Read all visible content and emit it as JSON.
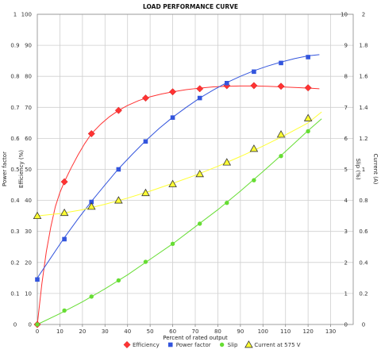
{
  "chart_data": {
    "type": "line",
    "title": "LOAD PERFORMANCE CURVE",
    "xlabel": "Percent of rated output",
    "xlim": [
      0,
      140
    ],
    "xticks": [
      0,
      10,
      20,
      30,
      40,
      50,
      60,
      70,
      80,
      90,
      100,
      110,
      120,
      130
    ],
    "grid": true,
    "legend_position": "bottom",
    "axes": {
      "power_factor": {
        "label": "Power factor",
        "side": "left-outer",
        "range": [
          0,
          1
        ],
        "ticks": [
          "0",
          "0.1",
          "0.2",
          "0.3",
          "0.4",
          "0.5",
          "0.6",
          "0.7",
          "0.8",
          "0.9",
          "1"
        ]
      },
      "efficiency": {
        "label": "Efficiency (%)",
        "side": "left-inner",
        "range": [
          0,
          100
        ],
        "ticks": [
          "0",
          "10",
          "20",
          "30",
          "40",
          "50",
          "60",
          "70",
          "80",
          "90",
          "100"
        ]
      },
      "slip": {
        "label": "Slip (%)",
        "side": "right-inner",
        "range": [
          0,
          10
        ],
        "ticks": [
          "0",
          "1",
          "2",
          "3",
          "4",
          "5",
          "6",
          "7",
          "8",
          "9",
          "10"
        ]
      },
      "current": {
        "label": "Current (A)",
        "side": "right-outer",
        "range": [
          0,
          2
        ],
        "ticks": [
          "0",
          "0.2",
          "0.4",
          "0.6",
          "0.8",
          "1",
          "1.2",
          "1.4",
          "1.6",
          "1.8",
          "2"
        ]
      }
    },
    "series": [
      {
        "name": "Efficiency",
        "axis": "efficiency",
        "color": "#ff3333",
        "marker": "diamond",
        "x": [
          0,
          12,
          24,
          36,
          48,
          60,
          72,
          84,
          96,
          108,
          120
        ],
        "y": [
          0,
          46,
          61.5,
          69,
          73,
          75,
          76,
          77,
          77,
          76.8,
          76.3
        ],
        "curve_x": [
          0,
          2,
          4,
          6,
          8,
          10,
          12,
          15,
          18,
          21,
          24,
          28,
          32,
          36,
          40,
          45,
          50,
          55,
          60,
          66,
          72,
          78,
          84,
          90,
          96,
          102,
          108,
          114,
          120,
          125
        ],
        "curve_y": [
          0,
          13,
          23.5,
          31.5,
          38,
          42.5,
          46,
          50.5,
          54.6,
          58.3,
          61.5,
          64.5,
          67,
          69,
          70.6,
          72.2,
          73.4,
          74.3,
          75,
          75.7,
          76.2,
          76.6,
          76.8,
          76.9,
          76.9,
          76.8,
          76.6,
          76.4,
          76.2,
          76
        ]
      },
      {
        "name": "Power factor",
        "axis": "power_factor",
        "color": "#3355dd",
        "marker": "square",
        "x": [
          0,
          12,
          24,
          36,
          48,
          60,
          72,
          84,
          96,
          108,
          120
        ],
        "y": [
          0.145,
          0.275,
          0.395,
          0.5,
          0.59,
          0.667,
          0.73,
          0.778,
          0.815,
          0.843,
          0.862
        ],
        "curve_x": [
          0,
          6,
          12,
          18,
          24,
          30,
          36,
          42,
          48,
          54,
          60,
          66,
          72,
          78,
          84,
          90,
          96,
          102,
          108,
          114,
          120,
          125
        ],
        "curve_y": [
          0.15,
          0.215,
          0.28,
          0.34,
          0.397,
          0.45,
          0.502,
          0.548,
          0.592,
          0.632,
          0.668,
          0.7,
          0.73,
          0.756,
          0.78,
          0.8,
          0.818,
          0.833,
          0.846,
          0.857,
          0.866,
          0.87
        ]
      },
      {
        "name": "Slip",
        "axis": "slip",
        "color": "#66dd33",
        "marker": "circle",
        "x": [
          0,
          12,
          24,
          36,
          48,
          60,
          72,
          84,
          96,
          108,
          120
        ],
        "y": [
          0,
          0.45,
          0.9,
          1.42,
          2.02,
          2.6,
          3.25,
          3.92,
          4.65,
          5.43,
          6.23
        ],
        "curve_x": [
          0,
          10,
          20,
          30,
          40,
          50,
          60,
          70,
          80,
          90,
          100,
          110,
          120,
          126
        ],
        "curve_y": [
          0,
          0.35,
          0.73,
          1.15,
          1.6,
          2.1,
          2.6,
          3.15,
          3.7,
          4.3,
          4.93,
          5.58,
          6.25,
          6.63
        ]
      },
      {
        "name": "Current at 575 V",
        "axis": "current",
        "color": "#ffff33",
        "marker": "triangle",
        "x": [
          0,
          12,
          24,
          36,
          48,
          60,
          72,
          84,
          96,
          108,
          120
        ],
        "y": [
          0.7,
          0.72,
          0.76,
          0.8,
          0.848,
          0.905,
          0.97,
          1.045,
          1.133,
          1.225,
          1.33
        ],
        "curve_x": [
          0,
          10,
          20,
          30,
          40,
          50,
          60,
          70,
          80,
          90,
          100,
          110,
          120,
          126
        ],
        "curve_y": [
          0.7,
          0.715,
          0.74,
          0.775,
          0.815,
          0.86,
          0.91,
          0.962,
          1.02,
          1.083,
          1.15,
          1.222,
          1.3,
          1.37
        ]
      }
    ]
  }
}
